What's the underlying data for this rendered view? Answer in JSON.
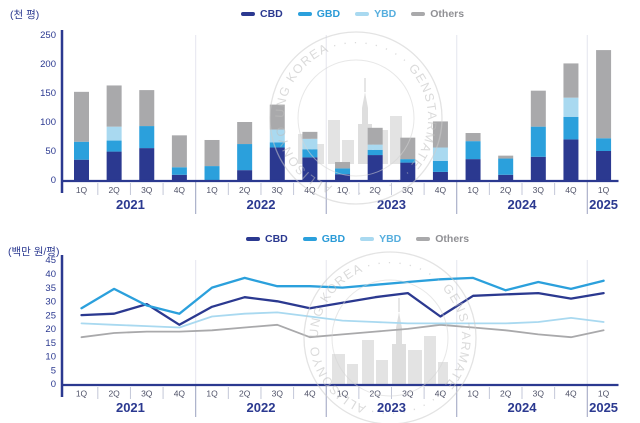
{
  "legend": {
    "items": [
      {
        "label": "CBD",
        "marker_color": "#2b3990",
        "text_color": "#2b3990"
      },
      {
        "label": "GBD",
        "marker_color": "#2ba0dc",
        "text_color": "#2b9bd7"
      },
      {
        "label": "YBD",
        "marker_color": "#a9d9f0",
        "text_color": "#56aede"
      },
      {
        "label": "Others",
        "marker_color": "#a9a9ab",
        "text_color": "#909094"
      }
    ]
  },
  "watermark": {
    "ring_text": "UNG KOREA · · · · · · · ·  GENSTARMATE  · · · · · · · · ALLISONYO"
  },
  "chart_data": [
    {
      "type": "bar",
      "stacked": true,
      "unit_label": "(천 평)",
      "ylim": [
        0,
        250
      ],
      "yticks": [
        0,
        50,
        100,
        150,
        200,
        250
      ],
      "grid": false,
      "legend_position": "top-center",
      "years": [
        {
          "label": "2021",
          "count": 4
        },
        {
          "label": "2022",
          "count": 4
        },
        {
          "label": "2023",
          "count": 4
        },
        {
          "label": "2024",
          "count": 4
        },
        {
          "label": "2025",
          "count": 1
        }
      ],
      "categories": [
        "1Q",
        "2Q",
        "3Q",
        "4Q",
        "1Q",
        "2Q",
        "3Q",
        "4Q",
        "1Q",
        "2Q",
        "3Q",
        "4Q",
        "1Q",
        "2Q",
        "3Q",
        "4Q",
        "1Q"
      ],
      "series": [
        {
          "name": "CBD",
          "color": "#2b3990",
          "values": [
            35,
            49,
            55,
            9,
            0,
            17,
            56,
            39,
            10,
            43,
            30,
            14,
            36,
            9,
            40,
            70,
            50
          ]
        },
        {
          "name": "GBD",
          "color": "#2ba0dc",
          "values": [
            31,
            19,
            38,
            13,
            24,
            45,
            9,
            14,
            10,
            9,
            6,
            19,
            31,
            28,
            52,
            39,
            22
          ]
        },
        {
          "name": "YBD",
          "color": "#a9d9f0",
          "values": [
            0,
            24,
            0,
            0,
            0,
            0,
            22,
            18,
            0,
            9,
            0,
            23,
            0,
            0,
            0,
            33,
            0
          ]
        },
        {
          "name": "Others",
          "color": "#a9a9ab",
          "values": [
            86,
            71,
            62,
            55,
            45,
            38,
            43,
            12,
            11,
            29,
            37,
            45,
            14,
            5,
            62,
            59,
            152
          ]
        }
      ]
    },
    {
      "type": "line",
      "unit_label": "(백만 원/평)",
      "ylim": [
        0,
        45
      ],
      "yticks": [
        0,
        5,
        10,
        15,
        20,
        25,
        30,
        35,
        40,
        45
      ],
      "grid": false,
      "legend_position": "top-center",
      "years": [
        {
          "label": "2021",
          "count": 4
        },
        {
          "label": "2022",
          "count": 4
        },
        {
          "label": "2023",
          "count": 4
        },
        {
          "label": "2024",
          "count": 4
        },
        {
          "label": "2025",
          "count": 1
        }
      ],
      "categories": [
        "1Q",
        "2Q",
        "3Q",
        "4Q",
        "1Q",
        "2Q",
        "3Q",
        "4Q",
        "1Q",
        "2Q",
        "3Q",
        "4Q",
        "1Q",
        "2Q",
        "3Q",
        "4Q",
        "1Q"
      ],
      "series": [
        {
          "name": "CBD",
          "color": "#2b3990",
          "values": [
            25,
            25.5,
            29,
            21.5,
            28,
            31.5,
            30,
            27.5,
            29.5,
            31.5,
            33,
            24.5,
            32,
            32.5,
            33,
            31,
            33
          ]
        },
        {
          "name": "GBD",
          "color": "#2ba0dc",
          "values": [
            27.5,
            34.5,
            28.5,
            25.5,
            35,
            38.5,
            35.5,
            35.5,
            35,
            36,
            37,
            38,
            38.5,
            34,
            37,
            34.5,
            37.5
          ]
        },
        {
          "name": "YBD",
          "color": "#a9d9f0",
          "values": [
            22,
            21.5,
            21,
            20.5,
            24.5,
            25.5,
            26,
            24.5,
            23,
            22.5,
            22,
            22,
            22,
            22,
            22.5,
            24,
            22.5
          ]
        },
        {
          "name": "Others",
          "color": "#a9a9ab",
          "values": [
            17,
            18.5,
            19,
            19,
            19.5,
            20.5,
            21.5,
            17,
            18,
            19,
            20,
            21.5,
            20.5,
            19.5,
            18,
            17,
            19.5
          ]
        }
      ]
    }
  ]
}
